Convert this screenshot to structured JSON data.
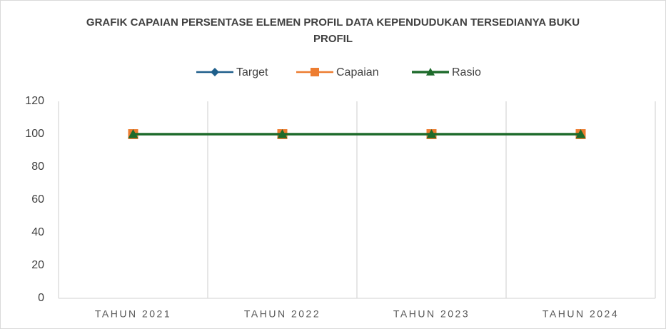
{
  "chart_data": {
    "type": "line",
    "title": "GRAFIK CAPAIAN PERSENTASE ELEMEN PROFIL DATA KEPENDUDUKAN TERSEDIANYA BUKU PROFIL",
    "categories": [
      "TAHUN 2021",
      "TAHUN 2022",
      "TAHUN 2023",
      "TAHUN 2024"
    ],
    "series": [
      {
        "name": "Target",
        "color": "#1f5f8b",
        "marker": "diamond",
        "values": [
          100,
          100,
          100,
          100
        ]
      },
      {
        "name": "Capaian",
        "color": "#ed7d31",
        "marker": "square",
        "values": [
          100,
          100,
          100,
          100
        ]
      },
      {
        "name": "Rasio",
        "color": "#1e6b2b",
        "marker": "triangle",
        "values": [
          100,
          100,
          100,
          100
        ]
      }
    ],
    "ylim": [
      0,
      120
    ],
    "yticks": [
      0,
      20,
      40,
      60,
      80,
      100,
      120
    ],
    "grid": "x",
    "legend": "top"
  }
}
